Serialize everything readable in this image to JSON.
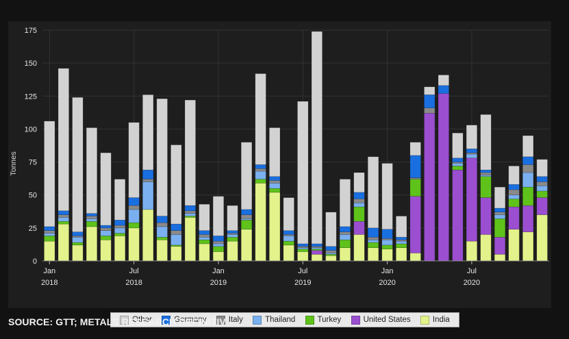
{
  "source": "SOURCE: GTT; METALS RESEARCH REFINITIV",
  "chart_data": {
    "type": "bar",
    "stacked": true,
    "ylabel": "Tonnes",
    "ylim": [
      0,
      175
    ],
    "yticks": [
      0,
      25,
      50,
      75,
      100,
      125,
      150,
      175
    ],
    "xticks": [
      {
        "index": 0,
        "top": "Jan",
        "bottom": "2018"
      },
      {
        "index": 6,
        "top": "Jul",
        "bottom": "2018"
      },
      {
        "index": 12,
        "top": "Jan",
        "bottom": "2019"
      },
      {
        "index": 18,
        "top": "Jul",
        "bottom": "2019"
      },
      {
        "index": 24,
        "top": "Jan",
        "bottom": "2020"
      },
      {
        "index": 30,
        "top": "Jul",
        "bottom": "2020"
      }
    ],
    "grid": true,
    "legend_position": "bottom",
    "categories": [
      "2018-01",
      "2018-02",
      "2018-03",
      "2018-04",
      "2018-05",
      "2018-06",
      "2018-07",
      "2018-08",
      "2018-09",
      "2018-10",
      "2018-11",
      "2018-12",
      "2019-01",
      "2019-02",
      "2019-03",
      "2019-04",
      "2019-05",
      "2019-06",
      "2019-07",
      "2019-08",
      "2019-09",
      "2019-10",
      "2019-11",
      "2019-12",
      "2020-01",
      "2020-02",
      "2020-03",
      "2020-04",
      "2020-05",
      "2020-06",
      "2020-07",
      "2020-08",
      "2020-09",
      "2020-10",
      "2020-11",
      "2020-12"
    ],
    "series": [
      {
        "name": "India",
        "color": "#e3f28a",
        "values": [
          15,
          28,
          12,
          26,
          16,
          19,
          25,
          39,
          16,
          11,
          33,
          13,
          7,
          15,
          24,
          59,
          52,
          12,
          7,
          5,
          4,
          10,
          20,
          10,
          9,
          10,
          6,
          0,
          0,
          0,
          15,
          20,
          5,
          24,
          22,
          35
        ]
      },
      {
        "name": "United States",
        "color": "#9b4fd0",
        "values": [
          0,
          0,
          0,
          0,
          0,
          0,
          0,
          0,
          0,
          0,
          0,
          0,
          0,
          0,
          0,
          0,
          0,
          0,
          0,
          3,
          0,
          0,
          10,
          0,
          0,
          0,
          43,
          112,
          127,
          69,
          63,
          28,
          13,
          17,
          20,
          13
        ]
      },
      {
        "name": "Turkey",
        "color": "#5ec21b",
        "values": [
          4,
          2,
          2,
          4,
          3,
          2,
          4,
          0,
          2,
          1,
          1,
          3,
          4,
          3,
          7,
          3,
          3,
          3,
          2,
          1,
          1,
          6,
          11,
          4,
          3,
          3,
          13,
          0,
          0,
          3,
          0,
          16,
          14,
          6,
          14,
          5
        ]
      },
      {
        "name": "Thailand",
        "color": "#7bb0f0",
        "values": [
          2,
          3,
          4,
          2,
          4,
          4,
          10,
          21,
          8,
          8,
          2,
          2,
          2,
          2,
          1,
          6,
          4,
          4,
          1,
          1,
          1,
          4,
          3,
          2,
          4,
          2,
          0,
          0,
          0,
          2,
          3,
          1,
          3,
          3,
          11,
          4
        ]
      },
      {
        "name": "Italy",
        "color": "#8a8a8a",
        "values": [
          2,
          2,
          1,
          2,
          2,
          2,
          3,
          2,
          3,
          3,
          2,
          2,
          2,
          1,
          3,
          2,
          2,
          1,
          1,
          1,
          2,
          2,
          3,
          2,
          1,
          1,
          1,
          4,
          0,
          1,
          1,
          2,
          2,
          4,
          6,
          3
        ]
      },
      {
        "name": "Germany",
        "color": "#1a6fe0",
        "values": [
          3,
          3,
          3,
          2,
          2,
          4,
          6,
          7,
          5,
          5,
          4,
          3,
          4,
          2,
          4,
          3,
          3,
          3,
          2,
          2,
          3,
          4,
          5,
          7,
          7,
          2,
          17,
          10,
          6,
          3,
          3,
          2,
          3,
          4,
          6,
          4
        ]
      },
      {
        "name": "Other",
        "color": "#d2d2d2",
        "values": [
          80,
          108,
          102,
          65,
          55,
          31,
          57,
          57,
          89,
          60,
          80,
          20,
          30,
          19,
          51,
          69,
          37,
          25,
          108,
          161,
          26,
          36,
          15,
          54,
          50,
          16,
          10,
          6,
          8,
          19,
          18,
          42,
          16,
          14,
          16,
          13
        ]
      }
    ],
    "legend_order": [
      "Other",
      "Germany",
      "Italy",
      "Thailand",
      "Turkey",
      "United States",
      "India"
    ]
  }
}
